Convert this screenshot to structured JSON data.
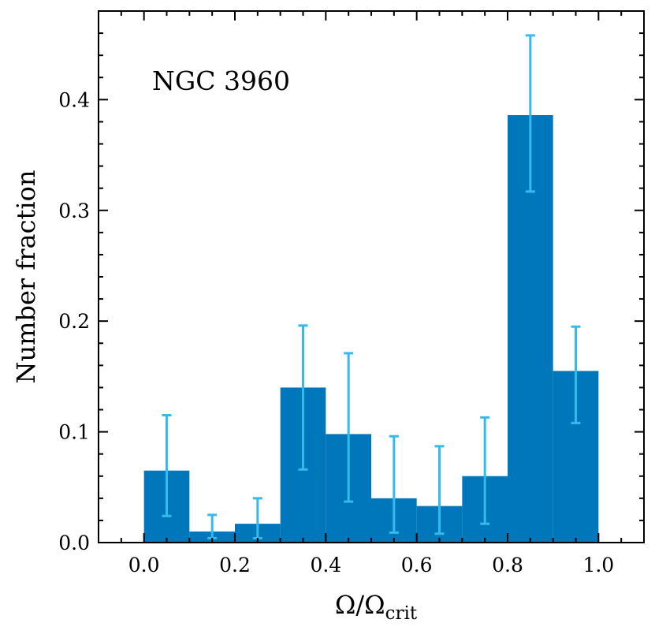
{
  "chart_data": {
    "type": "bar",
    "annotation": "NGC 3960",
    "xlabel_main": "Ω/Ω",
    "xlabel_sub": "crit",
    "ylabel": "Number fraction",
    "xlim": [
      -0.1,
      1.1
    ],
    "ylim": [
      0.0,
      0.48
    ],
    "xticks": [
      0.0,
      0.2,
      0.4,
      0.6,
      0.8,
      1.0
    ],
    "xtick_labels": [
      "0.0",
      "0.2",
      "0.4",
      "0.6",
      "0.8",
      "1.0"
    ],
    "yticks": [
      0.0,
      0.1,
      0.2,
      0.3,
      0.4
    ],
    "ytick_labels": [
      "0.0",
      "0.1",
      "0.2",
      "0.3",
      "0.4"
    ],
    "bin_width": 0.1,
    "bins": [
      0.0,
      0.1,
      0.2,
      0.3,
      0.4,
      0.5,
      0.6,
      0.7,
      0.8,
      0.9
    ],
    "values": [
      0.065,
      0.01,
      0.017,
      0.14,
      0.098,
      0.04,
      0.033,
      0.06,
      0.386,
      0.155
    ],
    "err_low": [
      0.024,
      0.004,
      0.004,
      0.066,
      0.037,
      0.009,
      0.008,
      0.017,
      0.317,
      0.108
    ],
    "err_high": [
      0.115,
      0.025,
      0.04,
      0.196,
      0.171,
      0.096,
      0.087,
      0.113,
      0.458,
      0.195
    ],
    "bar_color": "#0077bb",
    "error_color": "#33bbee"
  }
}
